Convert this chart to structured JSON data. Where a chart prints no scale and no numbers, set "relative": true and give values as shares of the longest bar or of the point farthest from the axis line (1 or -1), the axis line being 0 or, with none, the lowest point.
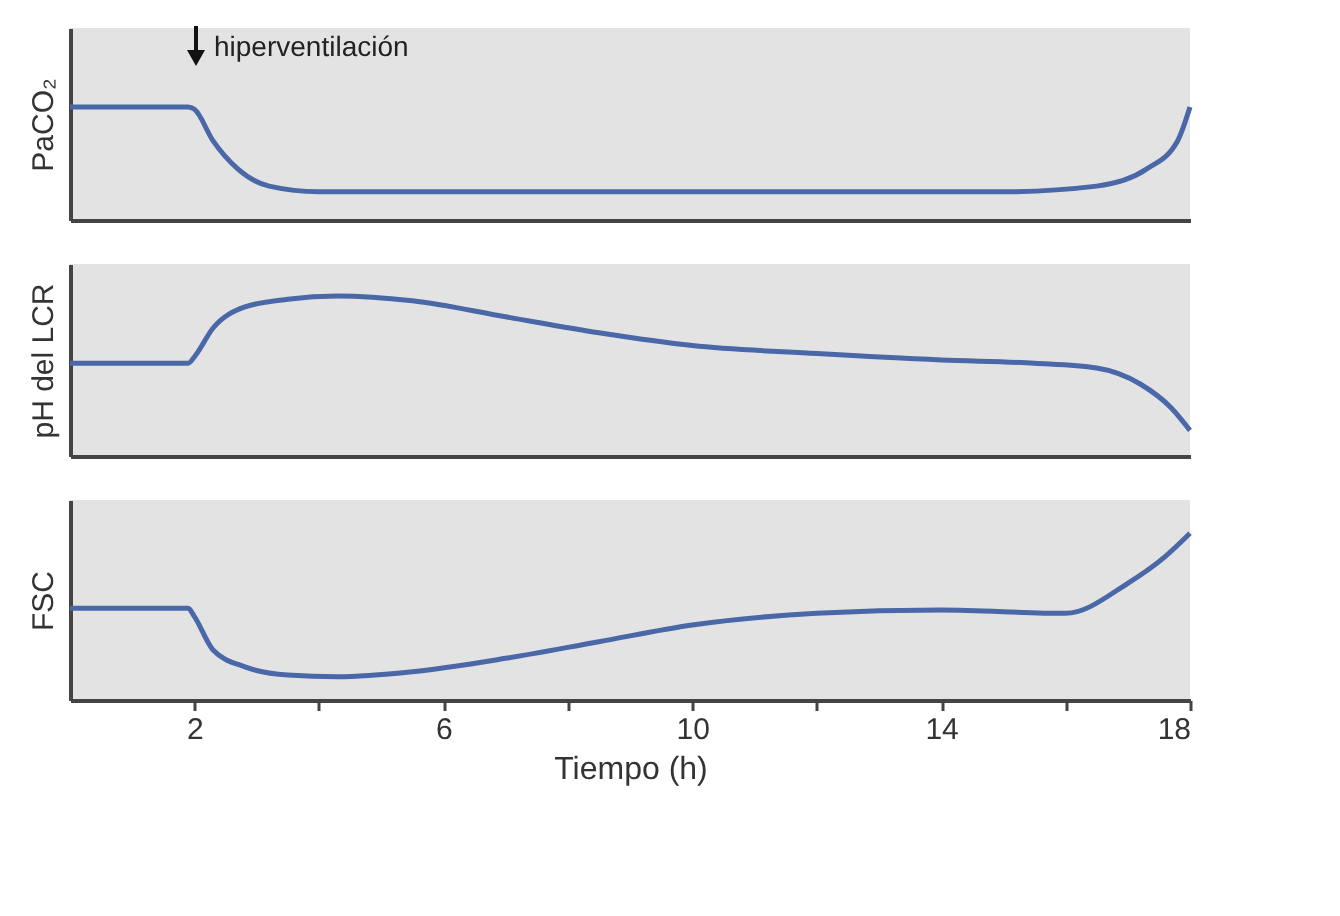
{
  "chart_data": [
    {
      "type": "line",
      "ylabel": "PaCO₂",
      "relative": true,
      "grid": false,
      "tick_labels": false,
      "xlim": [
        0,
        18
      ],
      "annotations": [
        "hiperventilación"
      ],
      "series": [
        {
          "color": "#4a67a8",
          "x": [
            0,
            1.9,
            2,
            2.3,
            2.7,
            3.2,
            4,
            10,
            15,
            16.5,
            17.3,
            17.8,
            18
          ],
          "values": [
            1,
            1,
            0.98,
            0.7,
            0.45,
            0.3,
            0.25,
            0.25,
            0.25,
            0.3,
            0.45,
            0.7,
            1
          ]
        }
      ]
    },
    {
      "type": "line",
      "ylabel": "pH del LCR",
      "relative": true,
      "grid": false,
      "tick_labels": false,
      "xlim": [
        0,
        18
      ],
      "series": [
        {
          "color": "#4a67a8",
          "x": [
            0,
            1.9,
            2,
            2.3,
            2.8,
            3.5,
            4.3,
            5.5,
            7,
            8.5,
            10,
            12,
            14,
            15.5,
            16.5,
            17.2,
            17.7,
            18
          ],
          "values": [
            0.58,
            0.58,
            0.62,
            0.8,
            0.93,
            0.98,
            1,
            0.97,
            0.87,
            0.77,
            0.69,
            0.64,
            0.6,
            0.58,
            0.55,
            0.45,
            0.3,
            0.16
          ]
        }
      ]
    },
    {
      "type": "line",
      "ylabel": "FSC",
      "xlabel": "Tiempo (h)",
      "relative": true,
      "grid": false,
      "tick_labels": "x",
      "xlim": [
        0,
        18
      ],
      "xticks": [
        2,
        {
          "value": 4,
          "label": null
        },
        6,
        {
          "value": 8,
          "label": null
        },
        10,
        {
          "value": 12,
          "label": null
        },
        14,
        {
          "value": 16,
          "label": null
        },
        18
      ],
      "series": [
        {
          "color": "#4a67a8",
          "x": [
            0,
            1.9,
            2,
            2.3,
            2.8,
            3.5,
            4.3,
            5.5,
            7,
            8.5,
            10,
            12,
            14,
            16,
            17,
            17.6,
            18
          ],
          "values": [
            0.55,
            0.55,
            0.5,
            0.3,
            0.2,
            0.15,
            0.14,
            0.17,
            0.25,
            0.35,
            0.45,
            0.52,
            0.54,
            0.52,
            0.7,
            0.86,
            1
          ]
        }
      ]
    }
  ]
}
